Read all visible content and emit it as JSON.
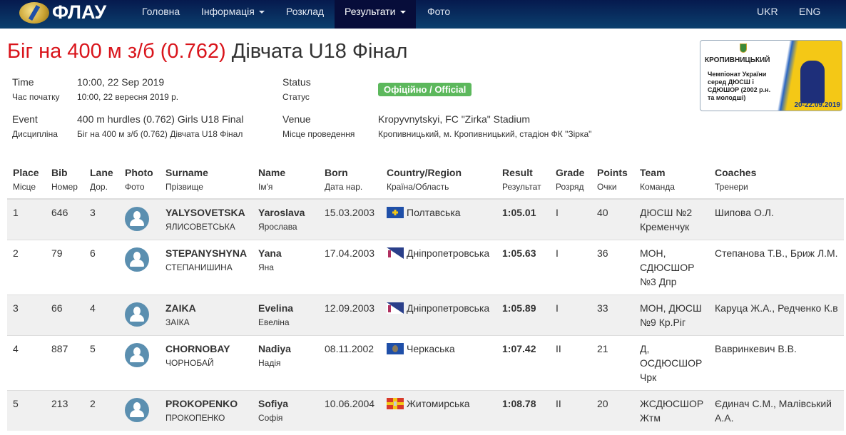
{
  "nav": {
    "logo_text": "ФЛАУ",
    "items": [
      {
        "label": "Головна"
      },
      {
        "label": "Інформація",
        "dropdown": true
      },
      {
        "label": "Розклад"
      },
      {
        "label": "Результати",
        "dropdown": true,
        "active": true
      },
      {
        "label": "Фото"
      }
    ],
    "lang": [
      "UKR",
      "ENG"
    ]
  },
  "title": {
    "red": "Біг на 400 м з/б (0.762)",
    "rest": "Дівчата U18 Фінал"
  },
  "info": {
    "time_label": "Time",
    "time_label_ua": "Час початку",
    "time": "10:00, 22 Sep 2019",
    "time_ua": "10:00, 22 вересня 2019 р.",
    "event_label": "Event",
    "event_label_ua": "Дисципліна",
    "event": "400 m hurdles (0.762) Girls U18 Final",
    "event_ua": "Біг на 400 м з/б (0.762) Дівчата U18 Фінал",
    "status_label": "Status",
    "status_label_ua": "Статус",
    "status": "Офіційно / Official",
    "venue_label": "Venue",
    "venue_label_ua": "Місце проведення",
    "venue": "Kropyvnytskyi, FC \"Zirka\" Stadium",
    "venue_ua": "Кропивницький, м. Кропивницький, стадіон ФК \"Зірка\""
  },
  "banner": {
    "city": "КРОПИВНИЦЬКИЙ",
    "text": "Чемпіонат України серед ДЮСШ і СДЮШОР (2002 р.н. та молодші)",
    "dates": "20-22.09.2019"
  },
  "colors": {
    "status": "#5cb85c",
    "title_red": "#d9141b",
    "nav_active": "#070d3a"
  },
  "table": {
    "headers": [
      [
        "Place",
        "Місце"
      ],
      [
        "Bib",
        "Номер"
      ],
      [
        "Lane",
        "Дор."
      ],
      [
        "Photo",
        "Фото"
      ],
      [
        "Surname",
        "Прізвище"
      ],
      [
        "Name",
        "Ім'я"
      ],
      [
        "Born",
        "Дата нар."
      ],
      [
        "Country/Region",
        "Країна/Область"
      ],
      [
        "Result",
        "Результат"
      ],
      [
        "Grade",
        "Розряд"
      ],
      [
        "Points",
        "Очки"
      ],
      [
        "Team",
        "Команда"
      ],
      [
        "Coaches",
        "Тренери"
      ]
    ],
    "rows": [
      {
        "place": "1",
        "bib": "646",
        "lane": "3",
        "surname": "YALYSOVETSKA",
        "surname_ua": "ЯЛИСОВЕТСЬКА",
        "name": "Yaroslava",
        "name_ua": "Ярослава",
        "born": "15.03.2003",
        "region": "Полтавська",
        "flag": "poltava",
        "result": "1:05.01",
        "grade": "I",
        "points": "40",
        "team": "ДЮСШ №2 Кременчук",
        "coaches": "Шипова О.Л."
      },
      {
        "place": "2",
        "bib": "79",
        "lane": "6",
        "surname": "STEPANYSHYNA",
        "surname_ua": "СТЕПАНИШИНА",
        "name": "Yana",
        "name_ua": "Яна",
        "born": "17.04.2003",
        "region": "Дніпропетровська",
        "flag": "dnipro",
        "result": "1:05.63",
        "grade": "I",
        "points": "36",
        "team": "МОН, СДЮСШОР №3 Дпр",
        "coaches": "Степанова Т.В., Бриж Л.М."
      },
      {
        "place": "3",
        "bib": "66",
        "lane": "4",
        "surname": "ZAIKA",
        "surname_ua": "ЗАІКА",
        "name": "Evelina",
        "name_ua": "Евеліна",
        "born": "12.09.2003",
        "region": "Дніпропетровська",
        "flag": "dnipro",
        "result": "1:05.89",
        "grade": "I",
        "points": "33",
        "team": "МОН, ДЮСШ №9 Кр.Ріг",
        "coaches": "Каруца Ж.А., Редченко К.в"
      },
      {
        "place": "4",
        "bib": "887",
        "lane": "5",
        "surname": "CHORNOBAY",
        "surname_ua": "ЧОРНОБАЙ",
        "name": "Nadiya",
        "name_ua": "Надія",
        "born": "08.11.2002",
        "region": "Черкаська",
        "flag": "cherkasy",
        "result": "1:07.42",
        "grade": "II",
        "points": "21",
        "team": "Д, ОСДЮСШОР Чрк",
        "coaches": "Вавринкевич В.В."
      },
      {
        "place": "5",
        "bib": "213",
        "lane": "2",
        "surname": "PROKOPENKO",
        "surname_ua": "ПРОКОПЕНКО",
        "name": "Sofiya",
        "name_ua": "Софія",
        "born": "10.06.2004",
        "region": "Житомирська",
        "flag": "zhytomyr",
        "result": "1:08.78",
        "grade": "II",
        "points": "20",
        "team": "ЖСДЮСШОР Жтм",
        "coaches": "Єдинач С.М., Малівський А.А."
      }
    ]
  }
}
